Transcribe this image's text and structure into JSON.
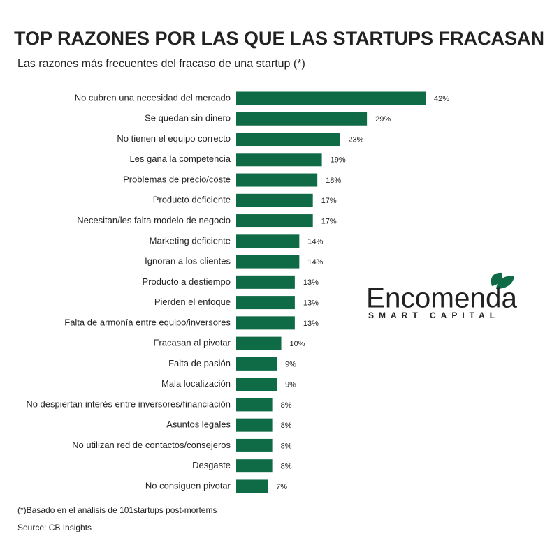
{
  "chart_data": {
    "type": "bar",
    "orientation": "horizontal",
    "title": "TOP RAZONES POR LAS QUE LAS STARTUPS FRACASAN",
    "subtitle": "Las razones más frecuentes del fracaso de una startup (*)",
    "categories": [
      "No cubren una necesidad del mercado",
      "Se quedan sin dinero",
      "No tienen el equipo correcto",
      "Les gana la competencia",
      "Problemas de precio/coste",
      "Producto deficiente",
      "Necesitan/les falta modelo de negocio",
      "Marketing deficiente",
      "Ignoran a los clientes",
      "Producto a destiempo",
      "Pierden el enfoque",
      "Falta de armonía entre equipo/inversores",
      "Fracasan al pivotar",
      "Falta de pasión",
      "Mala localización",
      "No despiertan interés entre inversores/financiación",
      "Asuntos legales",
      "No utilizan red de contactos/consejeros",
      "Desgaste",
      "No consiguen pivotar"
    ],
    "values": [
      42,
      29,
      23,
      19,
      18,
      17,
      17,
      14,
      14,
      13,
      13,
      13,
      10,
      9,
      9,
      8,
      8,
      8,
      8,
      7
    ],
    "value_labels": [
      "42%",
      "29%",
      "23%",
      "19%",
      "18%",
      "17%",
      "17%",
      "14%",
      "14%",
      "13%",
      "13%",
      "13%",
      "10%",
      "9%",
      "9%",
      "8%",
      "8%",
      "8%",
      "8%",
      "7%"
    ],
    "color": "#0e6b45",
    "footnote": "(*)Basado en el análisis de 101startups post-mortems",
    "source": "Source: CB Insights"
  },
  "logo": {
    "name": "Encomenda",
    "tagline": "SMART CAPITAL"
  }
}
